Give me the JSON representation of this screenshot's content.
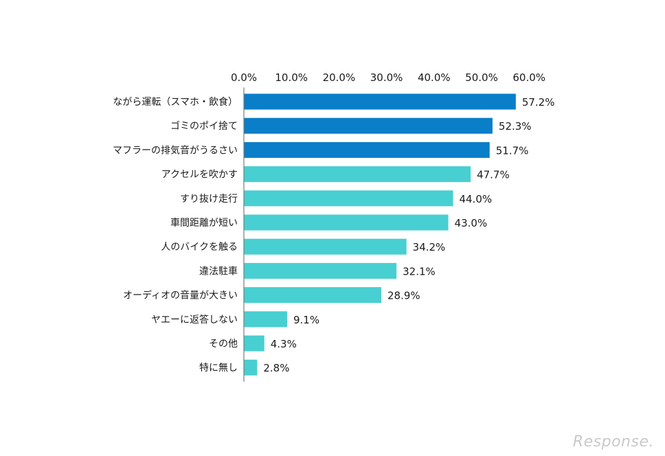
{
  "chart_data": {
    "type": "bar",
    "orientation": "horizontal",
    "categories": [
      "ながら運転（スマホ・飲食）",
      "ゴミのポイ捨て",
      "マフラーの排気音がうるさい",
      "アクセルを吹かす",
      "すり抜け走行",
      "車間距離が短い",
      "人のバイクを触る",
      "違法駐車",
      "オーディオの音量が大きい",
      "ヤエーに返答しない",
      "その他",
      "特に無し"
    ],
    "values": [
      57.2,
      52.3,
      51.7,
      47.7,
      44.0,
      43.0,
      34.2,
      32.1,
      28.9,
      9.1,
      4.3,
      2.8
    ],
    "data_labels": [
      "57.2%",
      "52.3%",
      "51.7%",
      "47.7%",
      "44.0%",
      "43.0%",
      "34.2%",
      "32.1%",
      "28.9%",
      "9.1%",
      "4.3%",
      "2.8%"
    ],
    "xticks": [
      "0.0%",
      "10.0%",
      "20.0%",
      "30.0%",
      "40.0%",
      "50.0%",
      "60.0%"
    ],
    "xlim": [
      0,
      60
    ],
    "highlight_count": 3,
    "colors": {
      "highlight": "#0a7ec8",
      "normal": "#48cfd1",
      "axis": "#7a7a7a"
    },
    "title": "",
    "xlabel": "",
    "ylabel": "",
    "grid": false,
    "legend": "none"
  },
  "watermark": "Response."
}
